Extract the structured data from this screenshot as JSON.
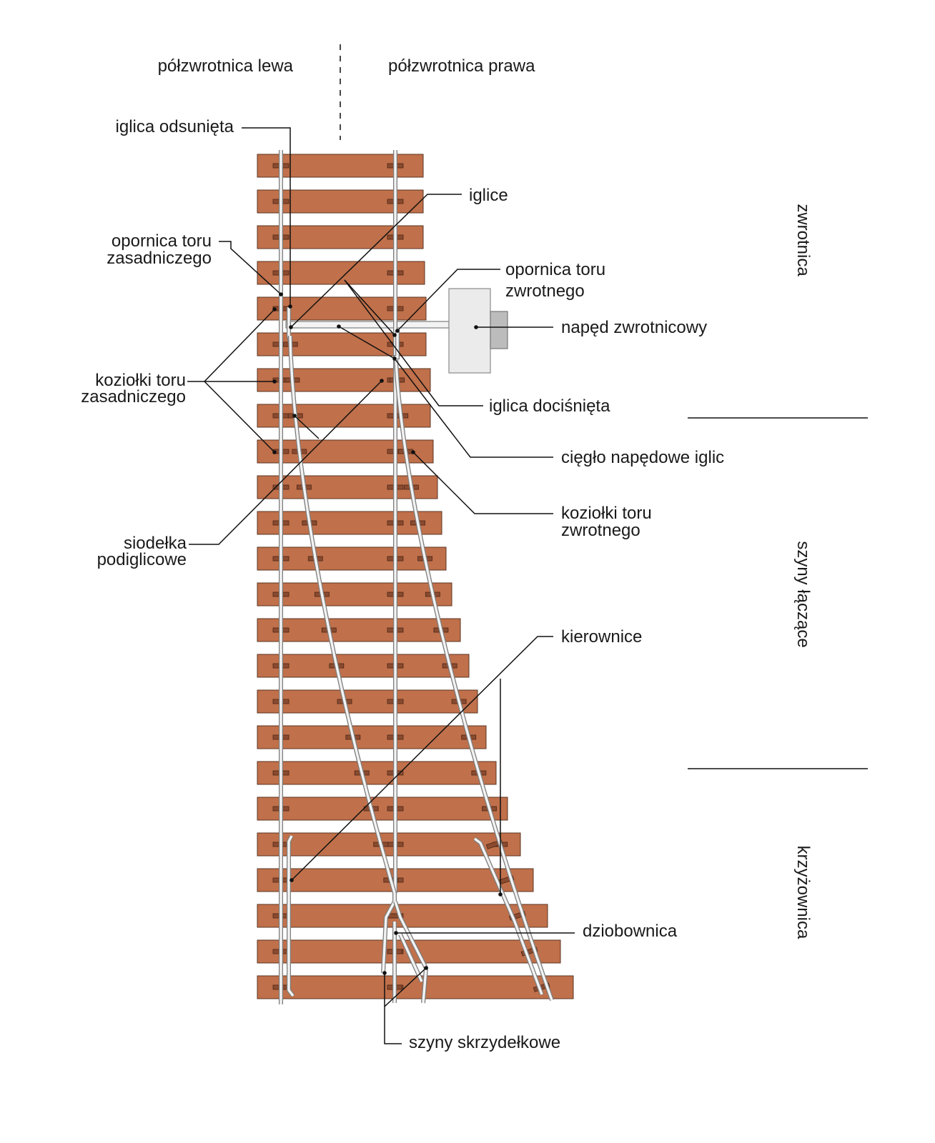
{
  "header": {
    "left_half": "półzwrotnica lewa",
    "right_half": "półzwrotnica prawa"
  },
  "sections": {
    "switch": "zwrotnica",
    "closure_rails": "szyny łączące",
    "crossing": "krzyżownica"
  },
  "labels": {
    "open_switch_blade": "iglica odsunięta",
    "switch_blades": "iglice",
    "main_stock_rail_line1": "opornica toru",
    "main_stock_rail_line2": "zasadniczego",
    "diverging_stock_rail_line1": "opornica toru",
    "diverging_stock_rail_line2": "zwrotnego",
    "point_machine": "napęd zwrotnicowy",
    "closed_switch_blade": "iglica dociśnięta",
    "main_chairs_line1": "koziołki toru",
    "main_chairs_line2": "zasadniczego",
    "drive_rod": "cięgło napędowe iglic",
    "diverging_chairs_line1": "koziołki toru",
    "diverging_chairs_line2": "zwrotnego",
    "slide_chairs_line1": "siodełka",
    "slide_chairs_line2": "podiglicowe",
    "check_rails": "kierownice",
    "frog_nose": "dziobownica",
    "wing_rails": "szyny skrzydełkowe"
  },
  "colors": {
    "sleeper": "#c0704a",
    "sleeper_outline": "#5a3423",
    "baseplate": "#8b4a2e",
    "rail_head": "#f3f3f3",
    "rail_outline": "#7d7d7d",
    "machine_body": "#ebebeb",
    "machine_motor": "#bcbcbc",
    "line": "#111111"
  }
}
